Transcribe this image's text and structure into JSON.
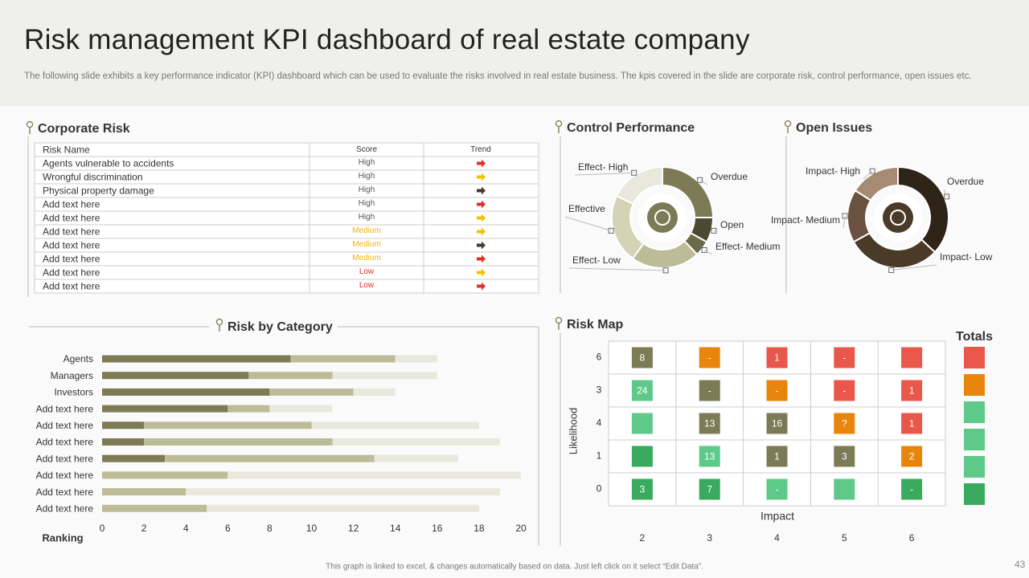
{
  "title": "Risk management KPI dashboard of real estate company",
  "subtitle": "The following slide exhibits a key performance indicator (KPI) dashboard which can be used to evaluate the risks involved in real estate business. The kpis covered in the slide are corporate risk, control performance, open issues etc.",
  "corporate_risk": {
    "title": "Corporate Risk",
    "header": [
      "Risk Name",
      "Score",
      "Trend"
    ],
    "rows": [
      {
        "name": "Agents vulnerable to accidents",
        "score": "High",
        "score_color": "#555555",
        "trend_color": "#e0302a"
      },
      {
        "name": "Wrongful discrimination",
        "score": "High",
        "score_color": "#555555",
        "trend_color": "#f2c200"
      },
      {
        "name": "Physical property damage",
        "score": "High",
        "score_color": "#555555",
        "trend_color": "#4a3a28"
      },
      {
        "name": "Add text here",
        "score": "High",
        "score_color": "#555555",
        "trend_color": "#e0302a"
      },
      {
        "name": "Add text here",
        "score": "High",
        "score_color": "#555555",
        "trend_color": "#f2c200"
      },
      {
        "name": "Add text here",
        "score": "Medium",
        "score_color": "#f2b600",
        "trend_color": "#f2c200"
      },
      {
        "name": "Add text here",
        "score": "Medium",
        "score_color": "#f2b600",
        "trend_color": "#4a3a28"
      },
      {
        "name": "Add text here",
        "score": "Medium",
        "score_color": "#f2b600",
        "trend_color": "#e0302a"
      },
      {
        "name": "Add text here",
        "score": "Low",
        "score_color": "#e0302a",
        "trend_color": "#f2c200"
      },
      {
        "name": "Add text here",
        "score": "Low",
        "score_color": "#e0302a",
        "trend_color": "#e0302a"
      }
    ]
  },
  "chart_data": [
    {
      "type": "pie",
      "title": "Control Performance",
      "categories": [
        "Overdue",
        "Open",
        "Effect- Medium",
        "Effect- Low",
        "Effective",
        "Effect- High"
      ],
      "values": [
        25,
        8,
        5,
        22,
        22,
        18
      ],
      "colors": [
        "#7d7a56",
        "#4a4a32",
        "#6b6b4a",
        "#bdbc98",
        "#d4d3b6",
        "#e9e8dc"
      ]
    },
    {
      "type": "pie",
      "title": "Open Issues",
      "categories": [
        "Overdue",
        "Impact- Low",
        "Impact- Medium",
        "Impact- High"
      ],
      "values": [
        37,
        30,
        17,
        16
      ],
      "colors": [
        "#2e2418",
        "#4a3a28",
        "#6b5140",
        "#a68a72"
      ]
    },
    {
      "type": "bar",
      "orientation": "horizontal",
      "stacked": true,
      "title": "Risk by Category",
      "xlabel": "Ranking",
      "categories": [
        "Agents",
        "Managers",
        "Investors",
        "Add text here",
        "Add text here",
        "Add text here",
        "Add text here",
        "Add text here",
        "Add text here",
        "Add text here"
      ],
      "series": [
        {
          "color": "#7d7a56",
          "values": [
            9,
            7,
            8,
            6,
            2,
            2,
            3,
            0,
            0,
            0
          ]
        },
        {
          "color": "#bdbc98",
          "values": [
            5,
            4,
            4,
            2,
            8,
            9,
            10,
            6,
            4,
            5
          ]
        },
        {
          "color": "#e9e8dc",
          "values": [
            2,
            5,
            2,
            3,
            8,
            8,
            4,
            14,
            15,
            13
          ]
        }
      ],
      "xlim": [
        0,
        20
      ],
      "xticks": [
        0,
        2,
        4,
        6,
        8,
        10,
        12,
        14,
        16,
        18,
        20
      ],
      "grid": false
    }
  ],
  "risk_map": {
    "title": "Risk Map",
    "ylabel": "Likelihood",
    "xlabel": "Impact",
    "totals_label": "Totals",
    "rows": [
      "6",
      "3",
      "4",
      "1",
      "0"
    ],
    "columns": [
      "2",
      "3",
      "4",
      "5",
      "6"
    ],
    "cells": [
      [
        {
          "text": "8",
          "color": "#7d7a56"
        },
        {
          "text": "-",
          "color": "#e8850c"
        },
        {
          "text": "1",
          "color": "#e8574a"
        },
        {
          "text": "-",
          "color": "#e8574a"
        },
        {
          "text": null,
          "color": "#e8574a"
        }
      ],
      [
        {
          "text": "24",
          "color": "#5fc98a"
        },
        {
          "text": "-",
          "color": "#7d7a56"
        },
        {
          "text": "-",
          "color": "#e8850c"
        },
        {
          "text": "-",
          "color": "#e8574a"
        },
        {
          "text": "1",
          "color": "#e8574a"
        }
      ],
      [
        {
          "text": null,
          "color": "#5fc98a"
        },
        {
          "text": "13",
          "color": "#7d7a56"
        },
        {
          "text": "16",
          "color": "#7d7a56"
        },
        {
          "text": "?",
          "color": "#e8850c"
        },
        {
          "text": "1",
          "color": "#e8574a"
        }
      ],
      [
        {
          "text": null,
          "color": "#3aaa5e"
        },
        {
          "text": "13",
          "color": "#5fc98a"
        },
        {
          "text": "1",
          "color": "#7d7a56"
        },
        {
          "text": "3",
          "color": "#7d7a56"
        },
        {
          "text": "2",
          "color": "#e8850c"
        }
      ],
      [
        {
          "text": "3",
          "color": "#3aaa5e"
        },
        {
          "text": "7",
          "color": "#3aaa5e"
        },
        {
          "text": "-",
          "color": "#5fc98a"
        },
        {
          "text": null,
          "color": "#5fc98a"
        },
        {
          "text": "-",
          "color": "#3aaa5e"
        }
      ]
    ],
    "totals_colors": [
      "#e8574a",
      "#e8850c",
      "#5fc98a",
      "#5fc98a",
      "#5fc98a",
      "#3aaa5e"
    ]
  },
  "footer": "This graph is linked to excel, & changes automatically based on data. Just left click on it select “Edit Data”.",
  "page_number": "43"
}
